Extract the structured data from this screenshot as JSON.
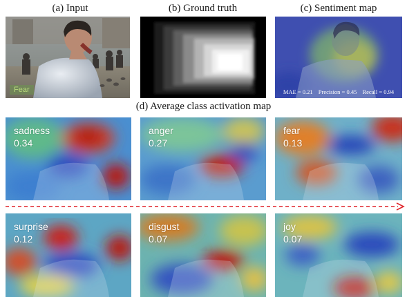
{
  "captions": {
    "input": "(a) Input",
    "ground_truth": "(b) Ground truth",
    "sentiment_map": "(c) Sentiment map",
    "average_cam": "(d) Average class activation map"
  },
  "input_panel": {
    "tag": "Fear"
  },
  "sentiment_panel": {
    "mae": "MAE = 0.21",
    "precision": "Precision = 0.45",
    "recall": "Recall = 0.94"
  },
  "cam_panels": [
    {
      "emotion": "sadness",
      "score": "0.34"
    },
    {
      "emotion": "anger",
      "score": "0.27"
    },
    {
      "emotion": "fear",
      "score": "0.13"
    },
    {
      "emotion": "surprise",
      "score": "0.12"
    },
    {
      "emotion": "disgust",
      "score": "0.07"
    },
    {
      "emotion": "joy",
      "score": "0.07"
    }
  ],
  "colors": {
    "arrow": "#e0242a",
    "heat_low": "#2a5fc8",
    "heat_high": "#c41e12"
  }
}
